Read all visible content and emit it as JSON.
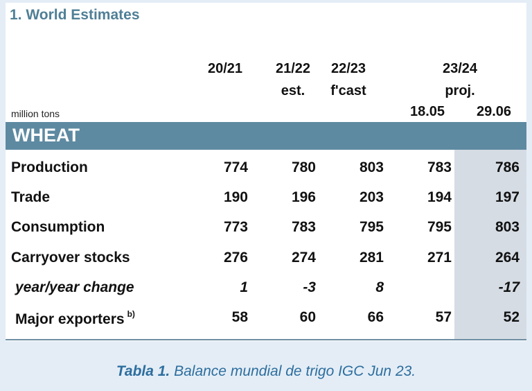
{
  "title": "1. World Estimates",
  "columns": {
    "c1": {
      "line1": "20/21",
      "line2": ""
    },
    "c2": {
      "line1": "21/22",
      "line2": "est."
    },
    "c3": {
      "line1": "22/23",
      "line2": "f'cast"
    },
    "group": {
      "line1": "23/24",
      "line2": "proj."
    },
    "c4": {
      "line3": "18.05"
    },
    "c5": {
      "line3": "29.06"
    }
  },
  "units": "million tons",
  "section": "WHEAT",
  "rows": [
    {
      "label": "Production",
      "values": [
        "774",
        "780",
        "803",
        "783",
        "786"
      ]
    },
    {
      "label": "Trade",
      "values": [
        "190",
        "196",
        "203",
        "194",
        "197"
      ]
    },
    {
      "label": "Consumption",
      "values": [
        "773",
        "783",
        "795",
        "795",
        "803"
      ]
    },
    {
      "label": "Carryover stocks",
      "values": [
        "276",
        "274",
        "281",
        "271",
        "264"
      ]
    },
    {
      "label": "year/year change",
      "values": [
        "1",
        "-3",
        "8",
        "",
        "-17"
      ]
    },
    {
      "label": "Major exporters",
      "sup": "b)",
      "values": [
        "58",
        "60",
        "66",
        "57",
        "52"
      ]
    }
  ],
  "caption": {
    "bold": "Tabla 1.",
    "text": " Balance mundial de trigo IGC Jun 23."
  }
}
